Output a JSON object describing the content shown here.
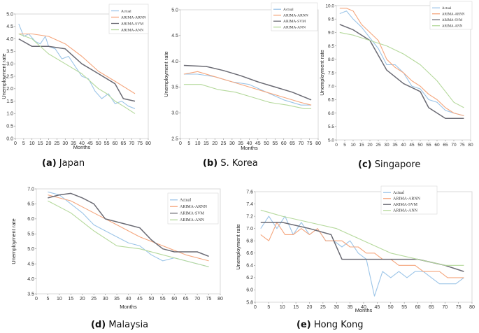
{
  "chart_data": [
    {
      "type": "line",
      "panel_label": "(a)",
      "title": "Japan",
      "xlabel": "Months",
      "ylabel": "Unemployment rate",
      "xlim": [
        0,
        80
      ],
      "ylim": [
        0.0,
        5.0
      ],
      "xticks": [
        0,
        5,
        10,
        15,
        20,
        25,
        30,
        35,
        40,
        45,
        50,
        55,
        60,
        65,
        70,
        75,
        80
      ],
      "yticks": [
        0.0,
        0.5,
        1.0,
        1.5,
        2.0,
        2.5,
        3.0,
        3.5,
        4.0,
        4.5,
        5.0
      ],
      "ytick_labels": [
        "0.0",
        "0.5",
        "1.0",
        "1.5",
        "2.0",
        "2.5",
        "3.0",
        "3.5",
        "4.0",
        "4.5",
        "5.0"
      ],
      "legend_position": "top-right",
      "series": [
        {
          "name": "Actual",
          "color": "#9cc5e8",
          "x": [
            2,
            5,
            8,
            12,
            15,
            18,
            20,
            24,
            28,
            32,
            36,
            40,
            44,
            48,
            52,
            56,
            60,
            64,
            68,
            72
          ],
          "values": [
            4.6,
            4.1,
            4.2,
            3.9,
            3.8,
            4.1,
            3.7,
            3.6,
            3.2,
            3.3,
            2.9,
            2.5,
            2.4,
            1.9,
            1.6,
            1.8,
            1.4,
            1.5,
            1.3,
            1.2
          ]
        },
        {
          "name": "ARIMA-ARNN",
          "color": "#f5a67d",
          "x": [
            2,
            10,
            20,
            30,
            40,
            50,
            60,
            72
          ],
          "values": [
            4.2,
            4.2,
            4.1,
            3.8,
            3.3,
            2.7,
            2.3,
            1.8
          ]
        },
        {
          "name": "ARIMA-SVM",
          "color": "#6b6b74",
          "x": [
            2,
            10,
            20,
            30,
            40,
            50,
            60,
            65,
            72
          ],
          "values": [
            4.0,
            3.7,
            3.7,
            3.6,
            3.0,
            2.6,
            2.2,
            1.6,
            1.5
          ]
        },
        {
          "name": "ARIMA-ANN",
          "color": "#b5d99c",
          "x": [
            2,
            10,
            20,
            30,
            40,
            50,
            55,
            60,
            65,
            72
          ],
          "values": [
            4.2,
            4.0,
            3.4,
            3.0,
            2.6,
            2.0,
            1.8,
            1.5,
            1.3,
            1.0
          ]
        }
      ]
    },
    {
      "type": "line",
      "panel_label": "(b)",
      "title": "S. Korea",
      "xlabel": "Months",
      "ylabel": "Unemployment rate",
      "xlim": [
        0,
        80
      ],
      "ylim": [
        2.5,
        5.0
      ],
      "xticks": [
        0,
        5,
        10,
        15,
        20,
        25,
        30,
        35,
        40,
        45,
        50,
        55,
        60,
        65,
        70,
        75,
        80
      ],
      "yticks": [
        2.5,
        3.0,
        3.5,
        4.0,
        4.5,
        5.0
      ],
      "ytick_labels": [
        "2.5",
        "3.0",
        "3.5",
        "4.0",
        "4.5",
        "5.0"
      ],
      "legend_position": "top-right",
      "series": [
        {
          "name": "Actual",
          "color": "#9cc5e8",
          "x": [
            2,
            10,
            20,
            30,
            40,
            50,
            60,
            70,
            76
          ],
          "values": [
            3.75,
            3.75,
            3.7,
            3.6,
            3.55,
            3.4,
            3.25,
            3.15,
            3.15
          ]
        },
        {
          "name": "ARIMA-ARNN",
          "color": "#f5a67d",
          "x": [
            2,
            10,
            20,
            30,
            40,
            50,
            60,
            70,
            76
          ],
          "values": [
            3.75,
            3.8,
            3.7,
            3.6,
            3.5,
            3.4,
            3.3,
            3.2,
            3.15
          ]
        },
        {
          "name": "ARIMA-SVM",
          "color": "#6b6b74",
          "x": [
            2,
            15,
            25,
            35,
            45,
            55,
            65,
            76
          ],
          "values": [
            3.92,
            3.9,
            3.82,
            3.72,
            3.6,
            3.5,
            3.4,
            3.25
          ]
        },
        {
          "name": "ARIMA-ANN",
          "color": "#b5d99c",
          "x": [
            2,
            12,
            22,
            32,
            42,
            52,
            62,
            72,
            76
          ],
          "values": [
            3.55,
            3.55,
            3.45,
            3.4,
            3.3,
            3.2,
            3.15,
            3.08,
            3.08
          ]
        }
      ]
    },
    {
      "type": "line",
      "panel_label": "(c)",
      "title": "Singapore",
      "xlabel": "",
      "ylabel": "Unemployment rate",
      "xlim": [
        0,
        80
      ],
      "ylim": [
        5.0,
        10.0
      ],
      "xticks": [
        0,
        5,
        10,
        15,
        20,
        25,
        30,
        35,
        40,
        45,
        50,
        55,
        60,
        65,
        70,
        75,
        80
      ],
      "yticks": [
        5.0,
        5.5,
        6.0,
        6.5,
        7.0,
        7.5,
        8.0,
        8.5,
        9.0,
        9.5,
        10.0
      ],
      "ytick_labels": [
        "5.0",
        "5.5",
        "6.0",
        "6.5",
        "7.0",
        "7.5",
        "8.0",
        "8.5",
        "9.0",
        "9.5",
        "10.0"
      ],
      "legend_position": "top-right",
      "series": [
        {
          "name": "Actual",
          "color": "#9cc5e8",
          "x": [
            2,
            6,
            10,
            15,
            20,
            25,
            30,
            35,
            40,
            45,
            50,
            55,
            60,
            65,
            70,
            76
          ],
          "values": [
            9.7,
            9.8,
            9.5,
            9.2,
            8.8,
            8.4,
            7.8,
            7.8,
            7.5,
            7.0,
            6.9,
            6.5,
            6.4,
            6.1,
            6.0,
            5.9
          ]
        },
        {
          "name": "ARIMA-ARNN",
          "color": "#f5a67d",
          "x": [
            2,
            6,
            10,
            15,
            20,
            25,
            30,
            35,
            40,
            45,
            50,
            55,
            60,
            65,
            70,
            76
          ],
          "values": [
            9.9,
            9.9,
            9.8,
            9.3,
            9.0,
            8.7,
            8.0,
            7.7,
            7.5,
            7.2,
            7.0,
            6.7,
            6.5,
            6.2,
            6.0,
            5.9
          ]
        },
        {
          "name": "ARIMA-SVM",
          "color": "#6b6b74",
          "x": [
            2,
            10,
            20,
            30,
            40,
            50,
            55,
            65,
            70,
            76
          ],
          "values": [
            9.3,
            9.1,
            8.7,
            7.6,
            7.1,
            6.8,
            6.2,
            5.8,
            5.8,
            5.8
          ]
        },
        {
          "name": "ARIMA-ANN",
          "color": "#b5d99c",
          "x": [
            2,
            10,
            20,
            30,
            40,
            50,
            60,
            70,
            76
          ],
          "values": [
            9.0,
            8.9,
            8.7,
            8.5,
            8.2,
            7.8,
            7.2,
            6.4,
            6.2
          ]
        }
      ]
    },
    {
      "type": "line",
      "panel_label": "(d)",
      "title": "Malaysia",
      "xlabel": "Months",
      "ylabel": "Unemployment rate",
      "xlim": [
        0,
        80
      ],
      "ylim": [
        3.5,
        7.0
      ],
      "xticks": [
        0,
        5,
        10,
        15,
        20,
        25,
        30,
        35,
        40,
        45,
        50,
        55,
        60,
        65,
        70,
        75,
        80
      ],
      "yticks": [
        3.5,
        4.0,
        4.5,
        5.0,
        5.5,
        6.0,
        6.5,
        7.0
      ],
      "ytick_labels": [
        "3.5",
        "4.0",
        "4.5",
        "5.0",
        "5.5",
        "6.0",
        "6.5",
        "7.0"
      ],
      "legend_position": "top-right",
      "series": [
        {
          "name": "Actual",
          "color": "#9cc5e8",
          "x": [
            5,
            10,
            15,
            20,
            25,
            30,
            35,
            40,
            45,
            50,
            55,
            60,
            65,
            70,
            75
          ],
          "values": [
            6.9,
            6.8,
            6.5,
            6.2,
            5.8,
            5.6,
            5.4,
            5.2,
            5.1,
            4.8,
            4.6,
            4.7,
            4.6,
            4.5,
            4.4
          ]
        },
        {
          "name": "ARIMA-ARNN",
          "color": "#f5a67d",
          "x": [
            5,
            15,
            25,
            35,
            45,
            55,
            65,
            75
          ],
          "values": [
            6.8,
            6.6,
            6.2,
            5.8,
            5.4,
            5.1,
            4.8,
            4.6
          ]
        },
        {
          "name": "ARIMA-SVM",
          "color": "#6b6b74",
          "x": [
            5,
            10,
            15,
            20,
            25,
            30,
            35,
            40,
            45,
            50,
            55,
            60,
            65,
            70,
            75
          ],
          "values": [
            6.7,
            6.8,
            6.85,
            6.7,
            6.5,
            6.0,
            5.9,
            5.8,
            5.7,
            5.3,
            5.0,
            4.9,
            4.9,
            4.9,
            4.75
          ]
        },
        {
          "name": "ARIMA-ANN",
          "color": "#b5d99c",
          "x": [
            5,
            15,
            25,
            35,
            45,
            55,
            65,
            75
          ],
          "values": [
            6.6,
            6.2,
            5.6,
            5.1,
            5.0,
            4.8,
            4.6,
            4.4
          ]
        }
      ]
    },
    {
      "type": "line",
      "panel_label": "(e)",
      "title": "Hong Kong",
      "xlabel": "Months",
      "ylabel": "Unemployment rate",
      "xlim": [
        0,
        80
      ],
      "ylim": [
        5.8,
        7.6
      ],
      "xticks": [
        0,
        5,
        10,
        15,
        20,
        25,
        30,
        35,
        40,
        45,
        50,
        55,
        60,
        65,
        70,
        75,
        80
      ],
      "yticks": [
        5.8,
        6.0,
        6.2,
        6.4,
        6.6,
        6.8,
        7.0,
        7.2,
        7.4,
        7.6
      ],
      "ytick_labels": [
        "5.8",
        "6.0",
        "6.2",
        "6.4",
        "6.6",
        "6.8",
        "7.0",
        "7.2",
        "7.4",
        "7.6"
      ],
      "legend_position": "top-right",
      "series": [
        {
          "name": "Actual",
          "color": "#9cc5e8",
          "x": [
            2,
            5,
            8,
            11,
            14,
            17,
            20,
            23,
            26,
            29,
            32,
            35,
            38,
            41,
            44,
            47,
            50,
            53,
            56,
            59,
            62,
            65,
            68,
            71,
            74,
            77
          ],
          "values": [
            7.0,
            7.2,
            7.0,
            7.2,
            6.9,
            7.1,
            6.9,
            7.0,
            6.8,
            6.8,
            6.7,
            6.8,
            6.6,
            6.5,
            5.9,
            6.3,
            6.2,
            6.3,
            6.2,
            6.3,
            6.3,
            6.2,
            6.1,
            6.1,
            6.1,
            6.2
          ]
        },
        {
          "name": "ARIMA-ARNN",
          "color": "#f5a67d",
          "x": [
            2,
            5,
            8,
            11,
            14,
            17,
            20,
            23,
            26,
            29,
            32,
            35,
            38,
            41,
            44,
            47,
            50,
            53,
            56,
            59,
            62,
            65,
            68,
            71,
            74,
            77
          ],
          "values": [
            6.9,
            6.8,
            7.1,
            6.9,
            6.9,
            7.0,
            6.9,
            7.0,
            6.8,
            6.8,
            6.8,
            6.7,
            6.7,
            6.6,
            6.6,
            6.5,
            6.5,
            6.4,
            6.4,
            6.4,
            6.3,
            6.3,
            6.3,
            6.2,
            6.2,
            6.2
          ]
        },
        {
          "name": "ARIMA-SVM",
          "color": "#6b6b74",
          "x": [
            2,
            10,
            20,
            28,
            32,
            40,
            50,
            60,
            70,
            77
          ],
          "values": [
            7.1,
            7.1,
            7.0,
            6.9,
            6.5,
            6.5,
            6.5,
            6.5,
            6.4,
            6.3
          ]
        },
        {
          "name": "ARIMA-ANN",
          "color": "#b5d99c",
          "x": [
            2,
            10,
            20,
            30,
            40,
            50,
            60,
            70,
            77
          ],
          "values": [
            7.3,
            7.2,
            7.1,
            7.0,
            6.8,
            6.6,
            6.5,
            6.4,
            6.4
          ]
        }
      ]
    }
  ]
}
